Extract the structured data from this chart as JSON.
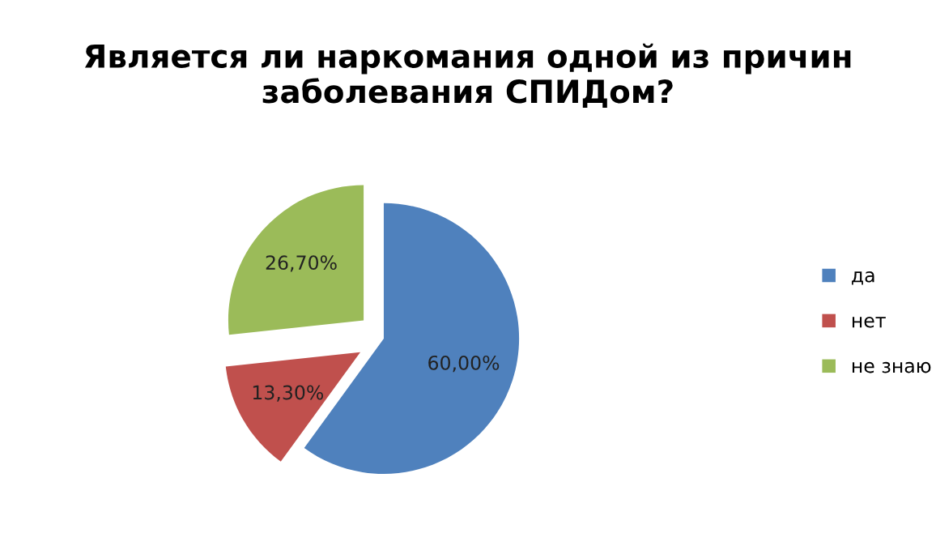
{
  "chart_data": {
    "type": "pie",
    "title": "Является ли наркомания одной из причин заболевания СПИДом?",
    "categories": [
      "да",
      "нет",
      "не знаю"
    ],
    "values": [
      60.0,
      13.3,
      26.7
    ],
    "value_labels": [
      "60,00%",
      "13,30%",
      "26,70%"
    ],
    "colors": [
      "#4f81bd",
      "#c0504d",
      "#9bbb59"
    ],
    "legend": "right"
  }
}
